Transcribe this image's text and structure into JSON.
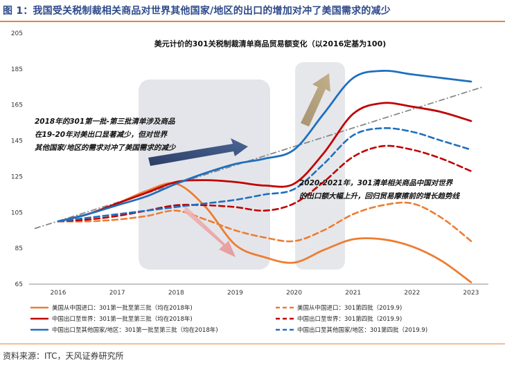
{
  "figure": {
    "title": "图 1：我国受关税制裁相关商品对世界其他国家/地区的出口的增加对冲了美国需求的减少",
    "source": "资料来源：ITC，天风证券研究所"
  },
  "chart_data": {
    "type": "line",
    "title": "美元计价的301关税制裁清单商品贸易额变化（以2016定基为100)",
    "xlabel": "",
    "ylabel": "",
    "x": [
      2016,
      2016.5,
      2017,
      2017.5,
      2018,
      2018.5,
      2019,
      2019.5,
      2020,
      2020.5,
      2021,
      2021.5,
      2022,
      2022.5,
      2023
    ],
    "x_ticks": [
      "2016",
      "2017",
      "2018",
      "2019",
      "2020",
      "2021",
      "2022",
      "2023"
    ],
    "y_ticks": [
      65,
      85,
      105,
      125,
      145,
      165,
      185,
      205
    ],
    "xlim": [
      2016,
      2023
    ],
    "ylim": [
      65,
      205
    ],
    "grid": false,
    "legend_position": "bottom",
    "series": [
      {
        "name": "美国从中国进口：301第一批至第三批（均在2018年)",
        "color": "#ed7d31",
        "dash": "solid",
        "values": [
          100,
          104,
          110,
          117,
          121,
          108,
          87,
          80,
          77,
          84,
          90,
          90,
          86,
          78,
          66
        ]
      },
      {
        "name": "美国从中国进口：301第四批（2019.9)",
        "color": "#ed7d31",
        "dash": "dashed",
        "values": [
          100,
          100,
          101,
          103,
          106,
          101,
          95,
          91,
          89,
          95,
          104,
          109,
          110,
          102,
          89
        ]
      },
      {
        "name": "中国出口至世界：301第一批至第三批（均在2018年)",
        "color": "#c00000",
        "dash": "solid",
        "values": [
          100,
          104,
          110,
          116,
          122,
          123,
          122,
          120,
          121,
          138,
          160,
          166,
          164,
          161,
          156
        ]
      },
      {
        "name": "中国出口至世界：301第四批（2019.9)",
        "color": "#c00000",
        "dash": "dashed",
        "values": [
          100,
          101,
          103,
          106,
          109,
          109,
          108,
          106,
          110,
          122,
          136,
          142,
          140,
          135,
          128
        ]
      },
      {
        "name": "中国出口至其他国家/地区：301第一批至第三批（均在2018年)",
        "color": "#1f6fbf",
        "dash": "solid",
        "values": [
          100,
          104,
          109,
          114,
          121,
          127,
          132,
          135,
          140,
          160,
          180,
          184,
          182,
          180,
          178
        ]
      },
      {
        "name": "中国出口至其他国家/地区：301第四批（2019.9)",
        "color": "#1f6fbf",
        "dash": "dashed",
        "values": [
          100,
          102,
          104,
          106,
          108,
          110,
          112,
          115,
          118,
          132,
          148,
          152,
          150,
          145,
          140
        ]
      }
    ],
    "trendline": {
      "color": "#888888",
      "from": [
        2015.6,
        96
      ],
      "to": [
        2023.2,
        175
      ]
    },
    "annotations": [
      {
        "lines": [
          "2018年的301第一批-第三批清单涉及商品",
          "在19-20年对美出口显著减少，但对世界",
          "其他国家/地区的需求对冲了美国需求的减少"
        ]
      },
      {
        "lines": [
          "2020-2021年，301清单相关商品中国对世界",
          "的出口额大幅上升，回归贸易摩擦前的增长趋势线"
        ]
      }
    ]
  }
}
